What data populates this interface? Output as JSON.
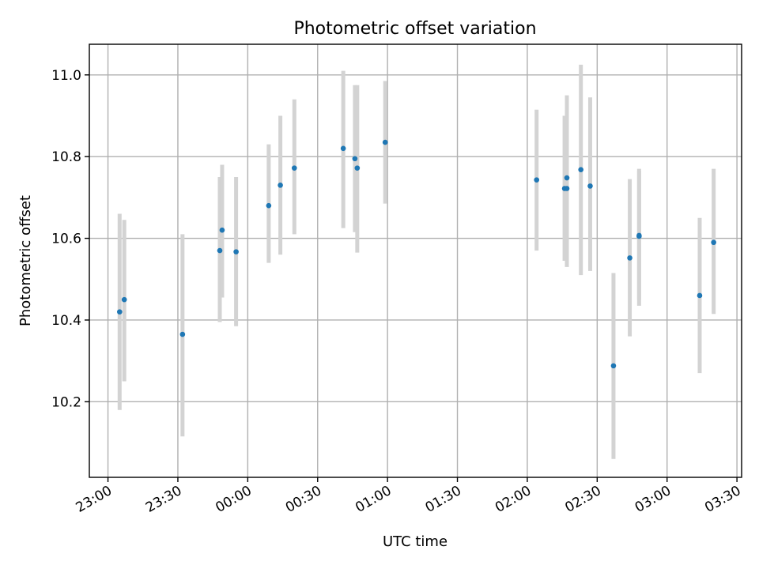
{
  "chart_data": {
    "type": "scatter",
    "title": "Photometric offset variation",
    "xlabel": "UTC time",
    "ylabel": "Photometric offset",
    "xlim": [
      "22:52",
      "03:32"
    ],
    "ylim": [
      10.015,
      11.075
    ],
    "grid": true,
    "x_ticks": [
      "23:00",
      "23:30",
      "00:00",
      "00:30",
      "01:00",
      "01:30",
      "02:00",
      "02:30",
      "03:00",
      "03:30"
    ],
    "y_ticks": [
      "10.2",
      "10.4",
      "10.6",
      "10.8",
      "11.0"
    ],
    "y_tick_values": [
      10.2,
      10.4,
      10.6,
      10.8,
      11.0
    ],
    "point_color": "#1f77b4",
    "errorbar_color": "#d3d3d3",
    "points": [
      {
        "x": "23:05",
        "y": 10.42,
        "ylow": 10.18,
        "yhigh": 10.66
      },
      {
        "x": "23:07",
        "y": 10.45,
        "ylow": 10.25,
        "yhigh": 10.645
      },
      {
        "x": "23:32",
        "y": 10.365,
        "ylow": 10.115,
        "yhigh": 10.61
      },
      {
        "x": "23:48",
        "y": 10.57,
        "ylow": 10.395,
        "yhigh": 10.75
      },
      {
        "x": "23:49",
        "y": 10.62,
        "ylow": 10.455,
        "yhigh": 10.78
      },
      {
        "x": "23:55",
        "y": 10.567,
        "ylow": 10.385,
        "yhigh": 10.75
      },
      {
        "x": "00:09",
        "y": 10.68,
        "ylow": 10.54,
        "yhigh": 10.83
      },
      {
        "x": "00:14",
        "y": 10.73,
        "ylow": 10.56,
        "yhigh": 10.9
      },
      {
        "x": "00:20",
        "y": 10.772,
        "ylow": 10.61,
        "yhigh": 10.94
      },
      {
        "x": "00:41",
        "y": 10.82,
        "ylow": 10.625,
        "yhigh": 11.01
      },
      {
        "x": "00:46",
        "y": 10.795,
        "ylow": 10.615,
        "yhigh": 10.975
      },
      {
        "x": "00:47",
        "y": 10.772,
        "ylow": 10.565,
        "yhigh": 10.975
      },
      {
        "x": "00:59",
        "y": 10.835,
        "ylow": 10.685,
        "yhigh": 10.985
      },
      {
        "x": "02:04",
        "y": 10.743,
        "ylow": 10.57,
        "yhigh": 10.915
      },
      {
        "x": "02:16",
        "y": 10.722,
        "ylow": 10.545,
        "yhigh": 10.9
      },
      {
        "x": "02:17",
        "y": 10.748,
        "ylow": 10.53,
        "yhigh": 10.95
      },
      {
        "x": "02:17",
        "y": 10.722,
        "ylow": 10.53,
        "yhigh": 10.915
      },
      {
        "x": "02:23",
        "y": 10.768,
        "ylow": 10.51,
        "yhigh": 11.025
      },
      {
        "x": "02:27",
        "y": 10.728,
        "ylow": 10.52,
        "yhigh": 10.945
      },
      {
        "x": "02:37",
        "y": 10.288,
        "ylow": 10.06,
        "yhigh": 10.515
      },
      {
        "x": "02:44",
        "y": 10.552,
        "ylow": 10.36,
        "yhigh": 10.745
      },
      {
        "x": "02:48",
        "y": 10.605,
        "ylow": 10.45,
        "yhigh": 10.765
      },
      {
        "x": "02:48",
        "y": 10.607,
        "ylow": 10.435,
        "yhigh": 10.77
      },
      {
        "x": "03:14",
        "y": 10.46,
        "ylow": 10.27,
        "yhigh": 10.65
      },
      {
        "x": "03:20",
        "y": 10.59,
        "ylow": 10.415,
        "yhigh": 10.77
      }
    ]
  }
}
